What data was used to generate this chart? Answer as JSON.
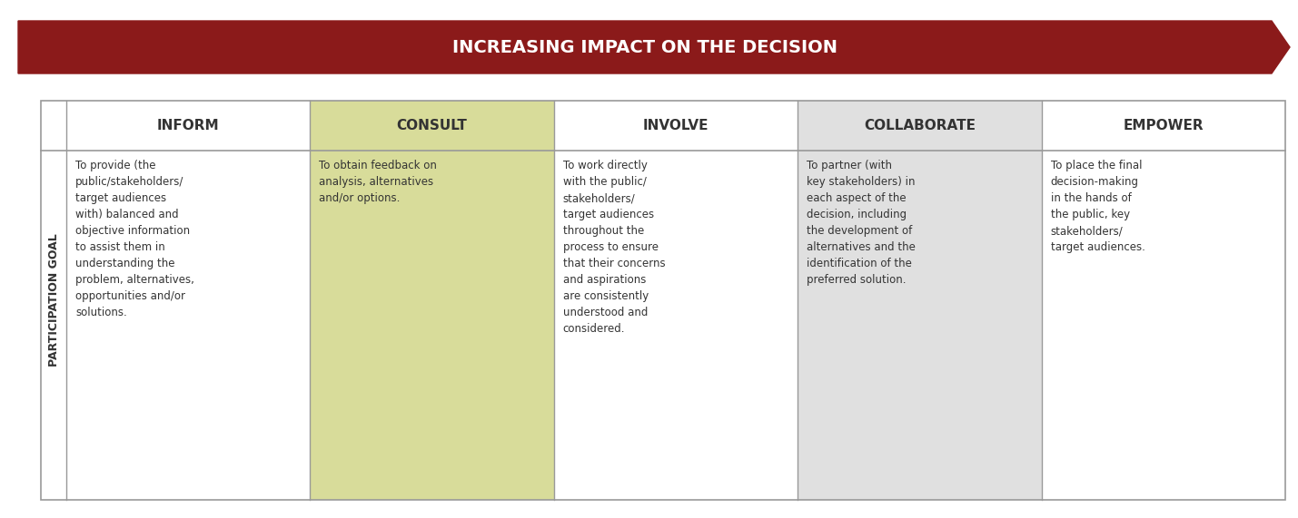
{
  "title": "INCREASING IMPACT ON THE DECISION",
  "title_color": "#FFFFFF",
  "arrow_color": "#8B1A1A",
  "col_headers": [
    "INFORM",
    "CONSULT",
    "INVOLVE",
    "COLLABORATE",
    "EMPOWER"
  ],
  "col_header_color": "#333333",
  "col_bg_colors": [
    "#FFFFFF",
    "#D8DC9A",
    "#FFFFFF",
    "#E0E0E0",
    "#FFFFFF"
  ],
  "row_label": "PARTICIPATION GOAL",
  "row_label_color": "#333333",
  "body_texts": [
    "To provide (the\npublic/stakeholders/\ntarget audiences\nwith) balanced and\nobjective information\nto assist them in\nunderstanding the\nproblem, alternatives,\nopportunities and/or\nsolutions.",
    "To obtain feedback on\nanalysis, alternatives\nand/or options.",
    "To work directly\nwith the public/\nstakeholders/\ntarget audiences\nthroughout the\nprocess to ensure\nthat their concerns\nand aspirations\nare consistently\nunderstood and\nconsidered.",
    "To partner (with\nkey stakeholders) in\neach aspect of the\ndecision, including\nthe development of\nalternatives and the\nidentification of the\npreferred solution.",
    "To place the final\ndecision-making\nin the hands of\nthe public, key\nstakeholders/\ntarget audiences."
  ],
  "text_color": "#333333",
  "border_color": "#999999",
  "background": "#FFFFFF"
}
